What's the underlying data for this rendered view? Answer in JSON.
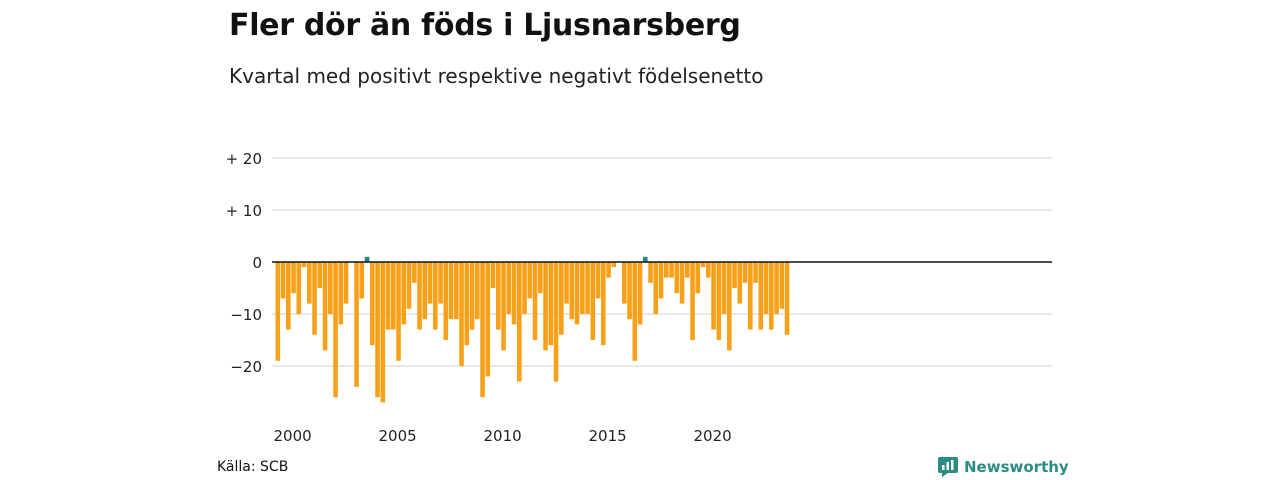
{
  "title": "Fler dör än föds i Ljusnarsberg",
  "subtitle": "Kvartal med positivt respektive negativt födelsenetto",
  "source": "Källa: SCB",
  "brand": "Newsworthy",
  "colors": {
    "negative": "#f7a11a",
    "positive": "#1f8a7d",
    "grid": "#d9d9d9",
    "zero": "#111111",
    "brand": "#2a8c84"
  },
  "chart_data": {
    "type": "bar",
    "title": "Fler dör än föds i Ljusnarsberg",
    "subtitle": "Kvartal med positivt respektive negativt födelsenetto",
    "ylim": [
      -27,
      22
    ],
    "y_ticks": [
      20,
      10,
      0,
      -10,
      -20
    ],
    "y_tick_labels": [
      "+ 20",
      "+ 10",
      "0",
      "−10",
      "−20"
    ],
    "x_ticks": [
      2000,
      2005,
      2010,
      2015,
      2020
    ],
    "x_tick_labels": [
      "2000",
      "2005",
      "2010",
      "2015",
      "2020"
    ],
    "x_start": 2000,
    "periods_per_year": 4,
    "grid": true,
    "values": [
      -19,
      -7,
      -13,
      -6,
      -10,
      -1,
      -8,
      -14,
      -5,
      -17,
      -10,
      -26,
      -12,
      -8,
      0,
      -24,
      -7,
      1,
      -16,
      -26,
      -27,
      -13,
      -13,
      -19,
      -12,
      -9,
      -4,
      -13,
      -11,
      -8,
      -13,
      -8,
      -15,
      -11,
      -11,
      -20,
      -16,
      -13,
      -11,
      -26,
      -22,
      -5,
      -13,
      -17,
      -10,
      -12,
      -23,
      -10,
      -7,
      -15,
      -6,
      -17,
      -16,
      -23,
      -14,
      -8,
      -11,
      -12,
      -10,
      -10,
      -15,
      -7,
      -16,
      -3,
      -1,
      0,
      -8,
      -11,
      -19,
      -12,
      1,
      -4,
      -10,
      -7,
      -3,
      -3,
      -6,
      -8,
      -3,
      -15,
      -6,
      -1,
      -3,
      -13,
      -15,
      -10,
      -17,
      -5,
      -8,
      -4,
      -13,
      -4,
      -13,
      -10,
      -13,
      -10,
      -9,
      -14
    ]
  }
}
